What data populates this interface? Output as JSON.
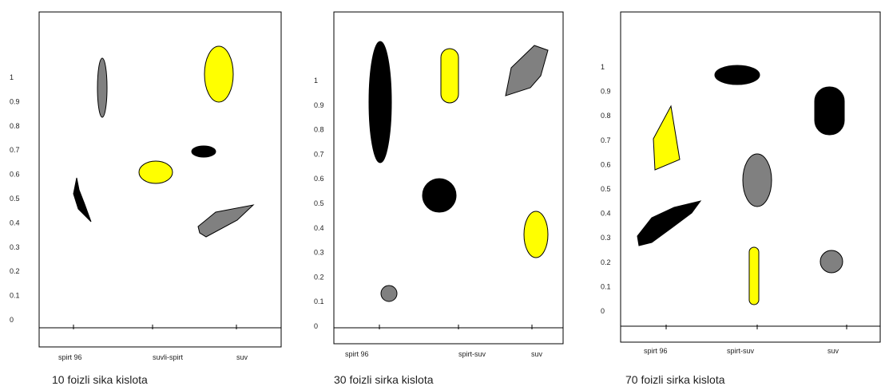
{
  "colors": {
    "black": "#000000",
    "gray": "#808080",
    "yellow": "#ffff00",
    "outline": "#000000"
  },
  "chart_data": [
    {
      "type": "scatter",
      "title": "10 foizli sika kislota",
      "categories": [
        "spirt 96",
        "suvli-spirt",
        "suv"
      ],
      "yticks": [
        "1",
        "0.9",
        "0.8",
        "0.7",
        "0.6",
        "0.5",
        "0.4",
        "0.3",
        "0.2",
        "0.1",
        "0"
      ],
      "ylim": [
        0,
        1
      ],
      "grid": false,
      "spots": [
        {
          "category": "spirt 96",
          "y": 0.95,
          "shape": "ellipse",
          "color": "gray"
        },
        {
          "category": "spirt 96",
          "y": 0.5,
          "shape": "polygon",
          "color": "black"
        },
        {
          "category": "suvli-spirt",
          "y": 0.61,
          "shape": "ellipse",
          "color": "yellow"
        },
        {
          "category": "suv",
          "y": 1.0,
          "shape": "ellipse",
          "color": "yellow"
        },
        {
          "category": "suv",
          "y": 0.69,
          "shape": "ellipse",
          "color": "black"
        },
        {
          "category": "suv",
          "y": 0.42,
          "shape": "polygon",
          "color": "gray"
        }
      ]
    },
    {
      "type": "scatter",
      "title": "30 foizli sirka kislota",
      "categories": [
        "spirt 96",
        "spirt-suv",
        "suv"
      ],
      "yticks": [
        "1",
        "0.9",
        "0.8",
        "0.7",
        "0.6",
        "0.5",
        "0.4",
        "0.3",
        "0.2",
        "0.1",
        "0"
      ],
      "ylim": [
        0,
        1
      ],
      "grid": false,
      "spots": [
        {
          "category": "spirt 96",
          "y": 0.93,
          "shape": "ellipse",
          "color": "black"
        },
        {
          "category": "spirt 96",
          "y": 0.13,
          "shape": "circle",
          "color": "gray"
        },
        {
          "category": "spirt-suv",
          "y": 1.04,
          "shape": "capsule",
          "color": "yellow"
        },
        {
          "category": "spirt-suv",
          "y": 0.53,
          "shape": "circle",
          "color": "black"
        },
        {
          "category": "suv",
          "y": 1.07,
          "shape": "polygon",
          "color": "gray"
        },
        {
          "category": "suv",
          "y": 0.37,
          "shape": "ellipse",
          "color": "yellow"
        }
      ]
    },
    {
      "type": "scatter",
      "title": "70 foizli sirka kislota",
      "categories": [
        "spirt 96",
        "spirt-suv",
        "suv"
      ],
      "yticks": [
        "1",
        "0.9",
        "0.8",
        "0.7",
        "0.6",
        "0.5",
        "0.4",
        "0.3",
        "0.2",
        "0.1",
        "0"
      ],
      "ylim": [
        0,
        1
      ],
      "grid": false,
      "spots": [
        {
          "category": "spirt 96",
          "y": 0.71,
          "shape": "polygon",
          "color": "yellow"
        },
        {
          "category": "spirt 96",
          "y": 0.36,
          "shape": "polygon",
          "color": "black"
        },
        {
          "category": "spirt-suv",
          "y": 0.97,
          "shape": "ellipse",
          "color": "black"
        },
        {
          "category": "spirt-suv",
          "y": 0.54,
          "shape": "ellipse",
          "color": "gray"
        },
        {
          "category": "spirt-suv",
          "y": 0.14,
          "shape": "capsule",
          "color": "yellow"
        },
        {
          "category": "suv",
          "y": 0.82,
          "shape": "capsule",
          "color": "black"
        },
        {
          "category": "suv",
          "y": 0.2,
          "shape": "circle",
          "color": "gray"
        }
      ]
    }
  ]
}
